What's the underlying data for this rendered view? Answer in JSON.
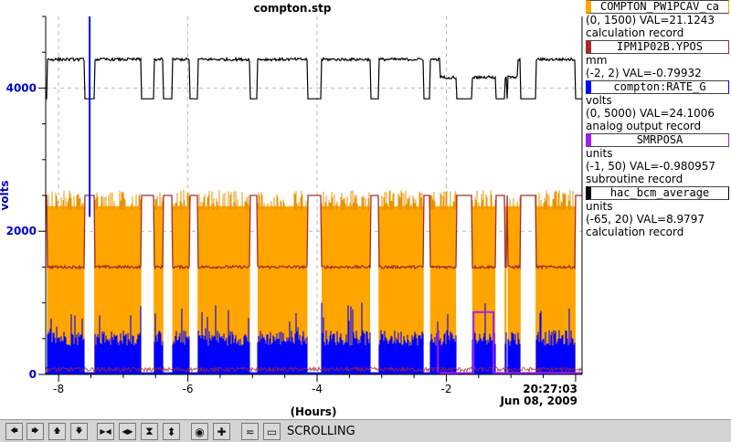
{
  "chart_data": {
    "type": "line",
    "title": "compton.stp",
    "xlabel": "(Hours)",
    "ylabel": "volts",
    "xlim": [
      -8.2,
      0.1
    ],
    "ylim": [
      0,
      5000
    ],
    "x_ticks": [
      "-8",
      "-6",
      "-4",
      "-2"
    ],
    "y_ticks": [
      "0",
      "2000",
      "4000"
    ],
    "grid": true,
    "end_time": "20:27:03",
    "end_date": "Jun 08, 2009",
    "series": [
      {
        "name": "hac_bcm_average",
        "color": "#000000",
        "high": 4400,
        "low": 3850
      },
      {
        "name": "IPM1P02B.YPOS",
        "color": "#a52a2a",
        "high": 2500,
        "mid": 1500,
        "low": 0
      },
      {
        "name": "COMPTON_PW1PCAV_ca",
        "color": "#ffa500",
        "high": 2500,
        "floor": 600,
        "low": 0
      },
      {
        "name": "compton:RATE_G",
        "color": "#0000ff",
        "level": 400
      },
      {
        "name": "SMRPOSA",
        "color": "#a020f0",
        "level": 870
      }
    ],
    "beam_on_segments": [
      [
        -8.18,
        -7.6
      ],
      [
        -7.45,
        -6.72
      ],
      [
        -6.53,
        -6.38
      ],
      [
        -6.24,
        -5.98
      ],
      [
        -5.85,
        -5.04
      ],
      [
        -4.92,
        -4.15
      ],
      [
        -3.93,
        -3.18
      ],
      [
        -3.05,
        -2.35
      ],
      [
        -2.25,
        -1.85
      ],
      [
        -1.6,
        -1.24
      ],
      [
        -1.1,
        -1.07
      ],
      [
        -1.05,
        -0.85
      ],
      [
        -0.62,
        0.0
      ]
    ],
    "cursor_x": -7.52
  },
  "legend": [
    {
      "name": "COMPTON_PW1PCAV_ca",
      "color": "#ffa500",
      "units": "",
      "range_value": "(0, 1500) VAL=21.1243",
      "record": "calculation record"
    },
    {
      "name": "IPM1P02B.YPOS",
      "color": "#a52a2a",
      "units": "mm",
      "range_value": "(-2, 2) VAL=-0.79932",
      "record": ""
    },
    {
      "name": "compton:RATE_G",
      "color": "#0000ff",
      "units": "volts",
      "range_value": "(0, 5000) VAL=24.1006",
      "record": "analog output record"
    },
    {
      "name": "SMRPOSA",
      "color": "#a020f0",
      "units": "units",
      "range_value": "(-1, 50) VAL=-0.980957",
      "record": "subroutine record"
    },
    {
      "name": "hac_bcm_average",
      "color": "#000000",
      "units": "units",
      "range_value": "(-65, 20) VAL=8.9797",
      "record": "calculation record"
    }
  ],
  "toolbar": {
    "status": "SCROLLING",
    "buttons": [
      {
        "name": "pan-left-icon",
        "glyph": "🡄"
      },
      {
        "name": "pan-right-icon",
        "glyph": "🡆"
      },
      {
        "name": "pan-up-icon",
        "glyph": "🡅"
      },
      {
        "name": "pan-down-icon",
        "glyph": "🡇"
      },
      {
        "name": "zoom-in-x-icon",
        "glyph": "▶◀"
      },
      {
        "name": "zoom-out-x-icon",
        "glyph": "◀▶"
      },
      {
        "name": "zoom-in-y-icon",
        "glyph": "⧗"
      },
      {
        "name": "zoom-out-y-icon",
        "glyph": "⬍"
      },
      {
        "name": "reset-icon",
        "glyph": "◉"
      },
      {
        "name": "add-icon",
        "glyph": "✚"
      },
      {
        "name": "stagger-icon",
        "glyph": "≂"
      },
      {
        "name": "config-icon",
        "glyph": "▭"
      }
    ]
  }
}
